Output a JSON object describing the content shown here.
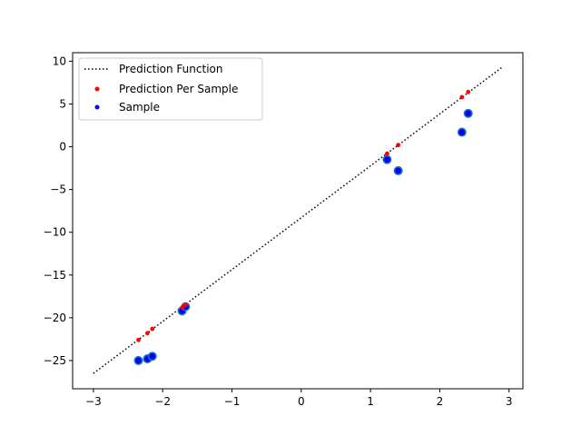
{
  "chart_data": {
    "type": "scatter",
    "title": "",
    "xlabel": "",
    "ylabel": "",
    "xlim": [
      -3.3,
      3.2
    ],
    "ylim": [
      -28.3,
      11.0
    ],
    "x_ticks": [
      -3,
      -2,
      -1,
      0,
      1,
      2,
      3
    ],
    "y_ticks": [
      10,
      5,
      0,
      -5,
      -10,
      -15,
      -20,
      -25
    ],
    "x_tick_labels": [
      "−3",
      "−2",
      "−1",
      "0",
      "1",
      "2",
      "3"
    ],
    "y_tick_labels": [
      "10",
      "5",
      "0",
      "−5",
      "−10",
      "−15",
      "−20",
      "−25"
    ],
    "grid": false,
    "legend_position": "top-left",
    "prediction_function": {
      "name": "Prediction Function",
      "style": "dotted",
      "color": "#000000",
      "x": [
        -3.0,
        2.9
      ],
      "y": [
        -26.5,
        9.3
      ]
    },
    "series": [
      {
        "name": "Prediction Per Sample",
        "color": "#ff0000",
        "marker": "small-dot",
        "x": [
          -2.35,
          -2.22,
          -2.15,
          -1.72,
          -1.67,
          1.24,
          1.4,
          2.32,
          2.41
        ],
        "y": [
          -22.6,
          -21.8,
          -21.3,
          -18.8,
          -18.5,
          -0.8,
          0.2,
          5.8,
          6.4
        ]
      },
      {
        "name": "Sample",
        "color": "#0000ff",
        "marker": "dot-with-ring",
        "ring_color": "#1f77b4",
        "x": [
          -2.35,
          -2.22,
          -2.15,
          -1.72,
          -1.67,
          1.24,
          1.4,
          2.32,
          2.41
        ],
        "y": [
          -25.0,
          -24.8,
          -24.5,
          -19.2,
          -18.7,
          -1.5,
          -2.8,
          1.7,
          3.9
        ]
      }
    ]
  }
}
